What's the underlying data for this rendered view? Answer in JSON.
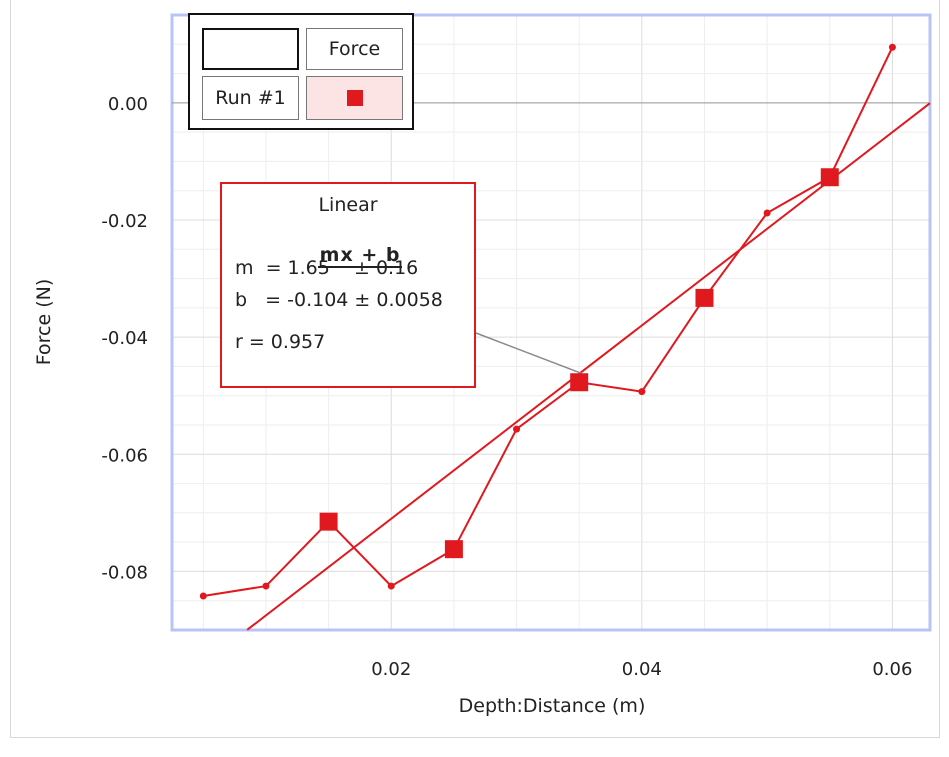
{
  "chart_data": {
    "type": "line",
    "xlabel": "Depth:Distance (m)",
    "ylabel": "Force (N)",
    "xlim": [
      0.0025,
      0.063
    ],
    "ylim": [
      -0.09,
      0.015
    ],
    "xticks": [
      0.02,
      0.04,
      0.06
    ],
    "xtick_labels": [
      "0.02",
      "0.04",
      "0.06"
    ],
    "yticks": [
      0.0,
      -0.02,
      -0.04,
      -0.06,
      -0.08
    ],
    "ytick_labels": [
      "0.00",
      "-0.02",
      "-0.04",
      "-0.06",
      "-0.08"
    ],
    "grid": true,
    "series": [
      {
        "name": "Run #1",
        "color": "#e0191f",
        "x": [
          0.005,
          0.01,
          0.015,
          0.02,
          0.025,
          0.03,
          0.035,
          0.04,
          0.045,
          0.05,
          0.055,
          0.06
        ],
        "y": [
          -0.0842,
          -0.0825,
          -0.0715,
          -0.0825,
          -0.0762,
          -0.0557,
          -0.0477,
          -0.0493,
          -0.0333,
          -0.0188,
          -0.0127,
          0.0095
        ],
        "square_marker_indices": [
          2,
          4,
          6,
          8,
          10
        ]
      }
    ],
    "fit": {
      "type": "linear",
      "m": 1.65,
      "b": -0.104,
      "x_range": [
        0.0085,
        0.063
      ]
    },
    "annotation_anchor": {
      "x": 0.0352,
      "y": -0.0462
    }
  },
  "legend": {
    "header": "Force",
    "run_label": "Run #1",
    "marker_color": "#e0191f",
    "marker_bg": "#fde4e4"
  },
  "fit_box": {
    "title": "Linear",
    "formula": "mx + b",
    "m_line": "m  = 1.65    ± 0.16",
    "b_line": "b   = -0.104 ± 0.0058",
    "r_line": "r = 0.957"
  }
}
